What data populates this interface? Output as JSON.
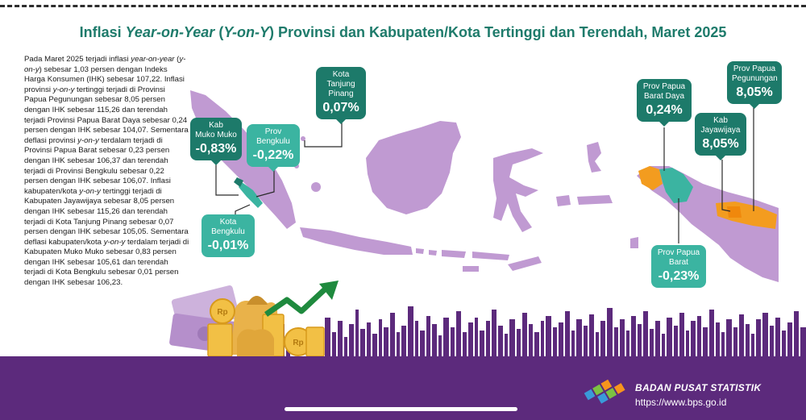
{
  "title": {
    "pre": "Inflasi ",
    "yoy": "Year-on-Year",
    "mid": " (",
    "yoy_short": "Y-on-Y",
    "post": ") Provinsi dan Kabupaten/Kota Tertinggi dan Terendah, Maret 2025"
  },
  "paragraph": [
    {
      "t": "Pada Maret 2025 terjadi inflasi ",
      "i": false
    },
    {
      "t": "year-on-year",
      "i": true
    },
    {
      "t": " (",
      "i": false
    },
    {
      "t": "y-on-y",
      "i": true
    },
    {
      "t": ") sebesar 1,03 persen dengan Indeks Harga Konsumen (IHK) sebesar 107,22. Inflasi provinsi ",
      "i": false
    },
    {
      "t": "y-on-y",
      "i": true
    },
    {
      "t": " tertinggi terjadi di Provinsi Papua Pegunungan sebesar 8,05 persen dengan IHK sebesar 115,26 dan terendah terjadi Provinsi Papua Barat Daya sebesar 0,24 persen dengan IHK sebesar 104,07. Sementara deflasi provinsi ",
      "i": false
    },
    {
      "t": "y-on-y",
      "i": true
    },
    {
      "t": " terdalam terjadi di Provinsi Papua Barat sebesar 0,23 persen dengan IHK sebesar 106,37 dan terendah terjadi di Provinsi Bengkulu sebesar 0,22 persen dengan IHK sebesar 106,07. Inflasi kabupaten/kota ",
      "i": false
    },
    {
      "t": "y-on-y",
      "i": true
    },
    {
      "t": " tertinggi terjadi di Kabupaten Jayawijaya sebesar 8,05 persen dengan IHK sebesar 115,26 dan terendah terjadi di Kota Tanjung Pinang sebesar 0,07 persen dengan IHK sebesar 105,05. Sementara deflasi kabupaten/kota ",
      "i": false
    },
    {
      "t": "y-on-y",
      "i": true
    },
    {
      "t": " terdalam terjadi di Kabupaten Muko Muko sebesar 0,83 persen dengan IHK sebesar 105,61 dan terendah terjadi di Kota Bengkulu sebesar 0,01 persen dengan IHK sebesar 106,23.",
      "i": false
    }
  ],
  "callouts": {
    "muko_muko": {
      "name": "Kab\nMuko Muko",
      "value": "-0,83%"
    },
    "bengkulu_prov": {
      "name": "Prov\nBengkulu",
      "value": "-0,22%"
    },
    "tanjung_pinang": {
      "name": "Kota\nTanjung\nPinang",
      "value": "0,07%"
    },
    "kota_bengkulu": {
      "name": "Kota\nBengkulu",
      "value": "-0,01%"
    },
    "papua_barat_daya": {
      "name": "Prov Papua\nBarat Daya",
      "value": "0,24%"
    },
    "papua_pegunungan": {
      "name": "Prov Papua\nPegunungan",
      "value": "8,05%"
    },
    "jayawijaya": {
      "name": "Kab\nJayawijaya",
      "value": "8,05%"
    },
    "papua_barat": {
      "name": "Prov Papua\nBarat",
      "value": "-0,23%"
    }
  },
  "colors": {
    "land": "#c09ad2",
    "highlight_dark": "#1d7a6a",
    "highlight_teal": "#3bb4a1",
    "highlight_orange": "#f39c1f",
    "footer": "#5c2a7c",
    "city": "#5c2a7c"
  },
  "footer": {
    "org": "BADAN PUSAT STATISTIK",
    "url": "https://www.bps.go.id"
  }
}
